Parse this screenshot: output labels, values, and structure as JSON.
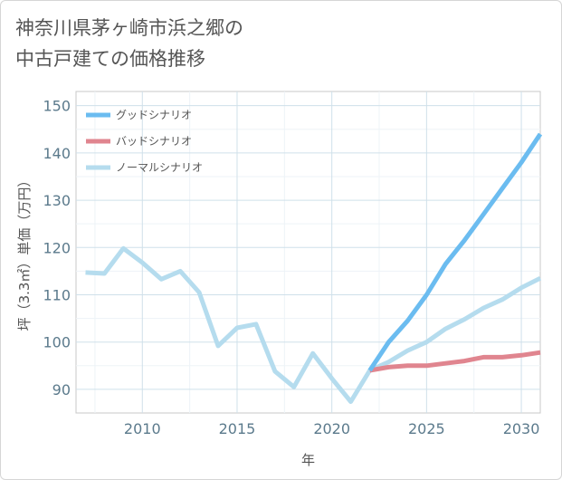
{
  "title_line1": "神奈川県茅ヶ崎市浜之郷の",
  "title_line2": "中古戸建ての価格推移",
  "chart_data": {
    "type": "line",
    "title": "神奈川県茅ヶ崎市浜之郷の中古戸建ての価格推移",
    "xlabel": "年",
    "ylabel": "坪（3.3㎡）単価（万円）",
    "xlim": [
      2006.5,
      2031
    ],
    "ylim": [
      85,
      153
    ],
    "xticks": [
      2010,
      2015,
      2020,
      2025,
      2030
    ],
    "yticks": [
      90,
      100,
      110,
      120,
      130,
      140,
      150
    ],
    "grid": true,
    "legend_position": "top-left",
    "series": [
      {
        "name": "グッドシナリオ",
        "color": "#6bbcf0",
        "x": [
          2022,
          2023,
          2024,
          2025,
          2026,
          2027,
          2028,
          2029,
          2030,
          2031
        ],
        "values": [
          94,
          100,
          104.5,
          110,
          116.5,
          121.5,
          127,
          132.5,
          138,
          144
        ]
      },
      {
        "name": "バッドシナリオ",
        "color": "#e0858f",
        "x": [
          2022,
          2023,
          2024,
          2025,
          2026,
          2027,
          2028,
          2029,
          2030,
          2031
        ],
        "values": [
          94,
          94.7,
          95,
          95,
          95.5,
          96,
          96.8,
          96.8,
          97.2,
          97.8
        ]
      },
      {
        "name": "ノーマルシナリオ",
        "color": "#b5dcee",
        "x": [
          2007,
          2008,
          2009,
          2010,
          2011,
          2012,
          2013,
          2014,
          2015,
          2016,
          2017,
          2018,
          2019,
          2020,
          2021,
          2022,
          2023,
          2024,
          2025,
          2026,
          2027,
          2028,
          2029,
          2030,
          2031
        ],
        "values": [
          114.7,
          114.5,
          119.8,
          116.8,
          113.3,
          115,
          110.5,
          99.2,
          103,
          103.8,
          93.8,
          90.5,
          97.6,
          92.3,
          87.4,
          94,
          95.8,
          98.2,
          100,
          102.8,
          104.8,
          107.2,
          109,
          111.5,
          113.5
        ]
      }
    ]
  }
}
